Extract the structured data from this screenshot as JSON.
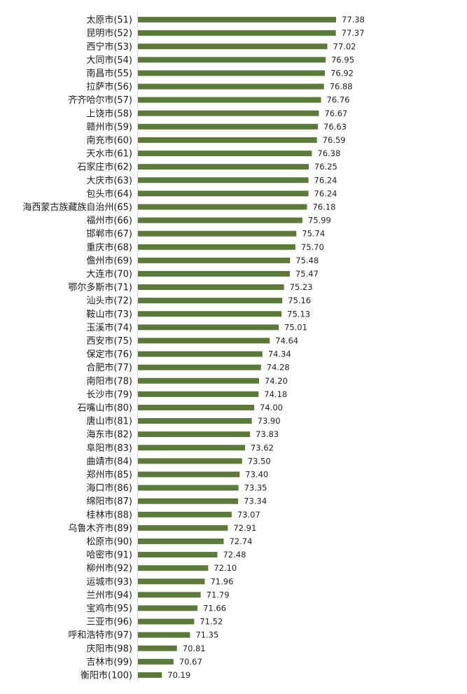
{
  "chart_data": {
    "type": "bar",
    "orientation": "horizontal",
    "title": "",
    "xlabel": "",
    "ylabel": "",
    "color": "#5b7a3a",
    "xlim": [
      69.2,
      77.38
    ],
    "grid": false,
    "legend": "none",
    "categories": [
      "太原市(51)",
      "昆明市(52)",
      "西宁市(53)",
      "大同市(54)",
      "南昌市(55)",
      "拉萨市(56)",
      "齐齐哈尔市(57)",
      "上饶市(58)",
      "赣州市(59)",
      "南充市(60)",
      "天水市(61)",
      "石家庄市(62)",
      "大庆市(63)",
      "包头市(64)",
      "海西蒙古族藏族自治州(65)",
      "福州市(66)",
      "邯郸市(67)",
      "重庆市(68)",
      "儋州市(69)",
      "大连市(70)",
      "鄂尔多斯市(71)",
      "汕头市(72)",
      "鞍山市(73)",
      "玉溪市(74)",
      "西安市(75)",
      "保定市(76)",
      "合肥市(77)",
      "南阳市(78)",
      "长沙市(79)",
      "石嘴山市(80)",
      "唐山市(81)",
      "海东市(82)",
      "阜阳市(83)",
      "曲靖市(84)",
      "郑州市(85)",
      "海口市(86)",
      "绵阳市(87)",
      "桂林市(88)",
      "乌鲁木齐市(89)",
      "松原市(90)",
      "哈密市(91)",
      "柳州市(92)",
      "运城市(93)",
      "兰州市(94)",
      "宝鸡市(95)",
      "三亚市(96)",
      "呼和浩特市(97)",
      "庆阳市(98)",
      "吉林市(99)",
      "衡阳市(100)"
    ],
    "value_labels": [
      "77.38",
      "77.37",
      "77.02",
      "76.95",
      "76.92",
      "76.88",
      "76.76",
      "76.67",
      "76.63",
      "76.59",
      "76.38",
      "76.25",
      "76.24",
      "76.24",
      "76.18",
      "75.99",
      "75.74",
      "75.70",
      "75.48",
      "75.47",
      "75.23",
      "75.16",
      "75.13",
      "75.01",
      "74.64",
      "74.34",
      "74.28",
      "74.20",
      "74.18",
      "74.00",
      "73.90",
      "73.83",
      "73.62",
      "73.50",
      "73.40",
      "73.35",
      "73.34",
      "73.07",
      "72.91",
      "72.74",
      "72.48",
      "72.10",
      "71.96",
      "71.79",
      "71.66",
      "71.52",
      "71.35",
      "70.81",
      "70.67",
      "70.19"
    ],
    "values": [
      77.38,
      77.37,
      77.02,
      76.95,
      76.92,
      76.88,
      76.76,
      76.67,
      76.63,
      76.59,
      76.38,
      76.25,
      76.24,
      76.24,
      76.18,
      75.99,
      75.74,
      75.7,
      75.48,
      75.47,
      75.23,
      75.16,
      75.13,
      75.01,
      74.64,
      74.34,
      74.28,
      74.2,
      74.18,
      74.0,
      73.9,
      73.83,
      73.62,
      73.5,
      73.4,
      73.35,
      73.34,
      73.07,
      72.91,
      72.74,
      72.48,
      72.1,
      71.96,
      71.79,
      71.66,
      71.52,
      71.35,
      70.81,
      70.67,
      70.19
    ]
  }
}
